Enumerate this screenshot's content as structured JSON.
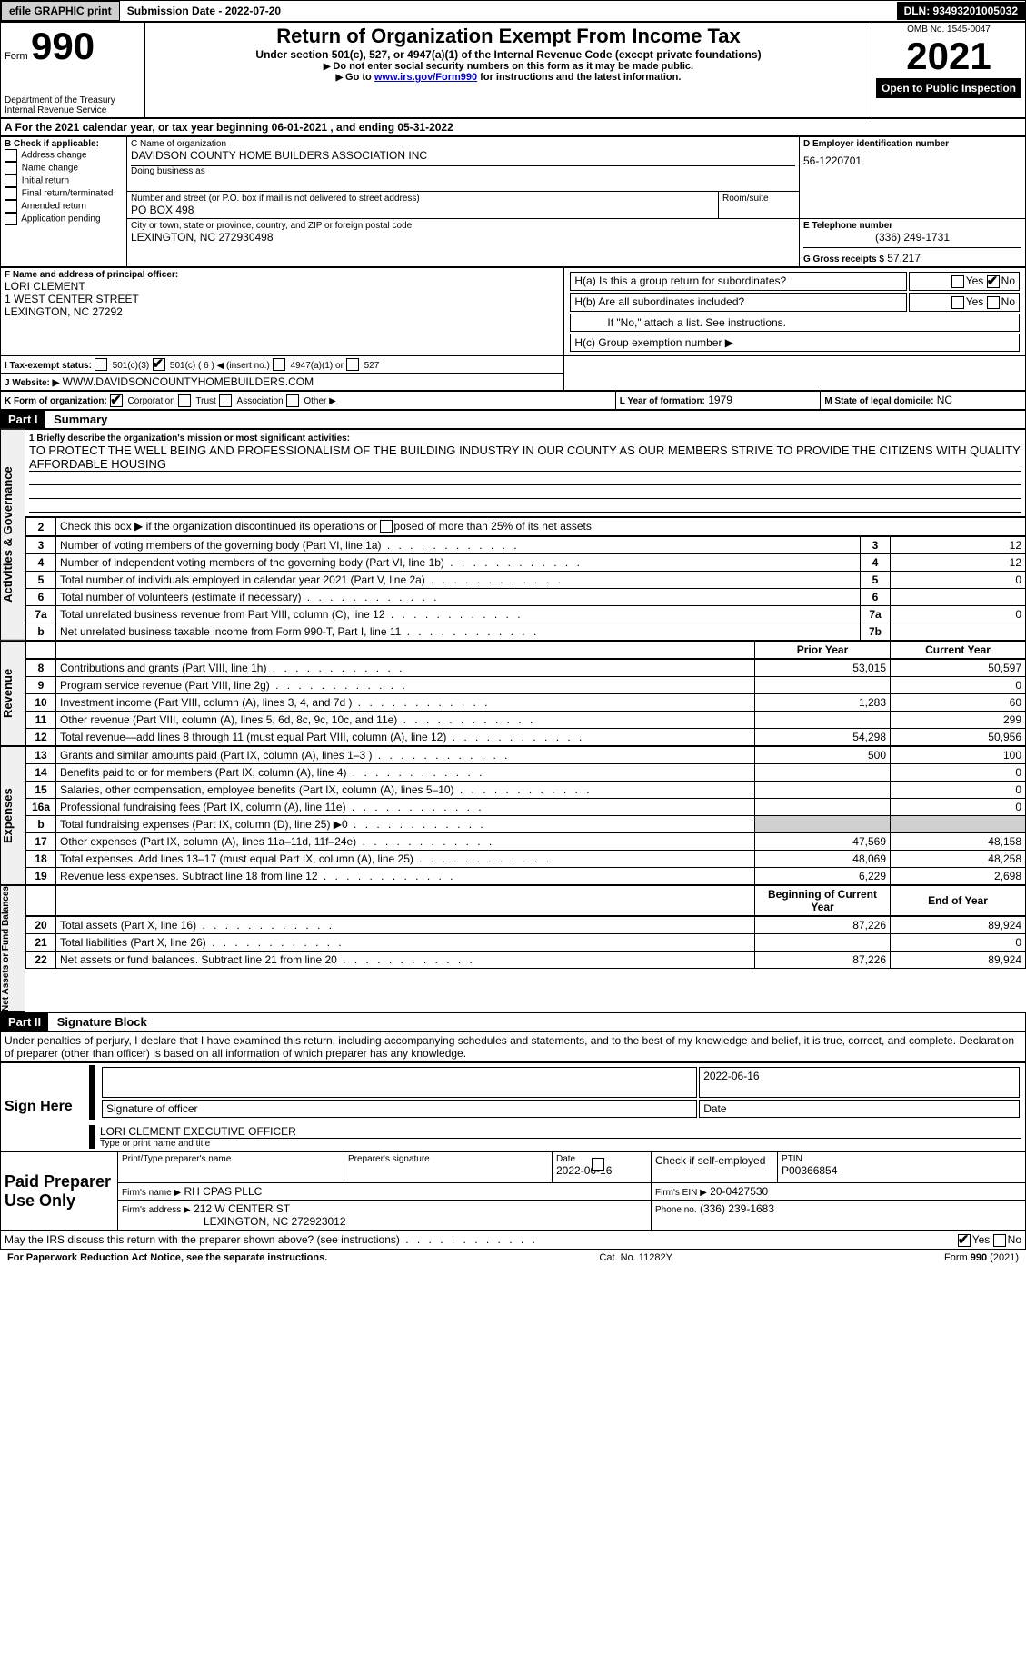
{
  "topbar": {
    "efile": "efile GRAPHIC print",
    "submission": "Submission Date - 2022-07-20",
    "dln": "DLN: 93493201005032"
  },
  "header": {
    "form_label": "Form",
    "form_no": "990",
    "dept": "Department of the Treasury",
    "irs": "Internal Revenue Service",
    "title": "Return of Organization Exempt From Income Tax",
    "subtitle": "Under section 501(c), 527, or 4947(a)(1) of the Internal Revenue Code (except private foundations)",
    "instr1": "Do not enter social security numbers on this form as it may be made public.",
    "instr2_pre": "Go to ",
    "instr2_link": "www.irs.gov/Form990",
    "instr2_post": " for instructions and the latest information.",
    "omb": "OMB No. 1545-0047",
    "year": "2021",
    "open": "Open to Public Inspection"
  },
  "sectionA": {
    "a": "A For the 2021 calendar year, or tax year beginning 06-01-2021   , and ending 05-31-2022",
    "b_label": "B Check if applicable:",
    "b_opts": [
      "Address change",
      "Name change",
      "Initial return",
      "Final return/terminated",
      "Amended return",
      "Application pending"
    ],
    "c_label": "C Name of organization",
    "c_name": "DAVIDSON COUNTY HOME BUILDERS ASSOCIATION INC",
    "dba": "Doing business as",
    "addr_label": "Number and street (or P.O. box if mail is not delivered to street address)",
    "addr": "PO BOX 498",
    "room": "Room/suite",
    "city_label": "City or town, state or province, country, and ZIP or foreign postal code",
    "city": "LEXINGTON, NC  272930498",
    "d_label": "D Employer identification number",
    "d_val": "56-1220701",
    "e_label": "E Telephone number",
    "e_val": "(336) 249-1731",
    "g_label": "G Gross receipts $",
    "g_val": "57,217",
    "f_label": "F  Name and address of principal officer:",
    "f_name": "LORI CLEMENT",
    "f_addr1": "1 WEST CENTER STREET",
    "f_addr2": "LEXINGTON, NC  27292",
    "ha": "H(a)  Is this a group return for subordinates?",
    "hb": "H(b)  Are all subordinates included?",
    "hb_note": "If \"No,\" attach a list. See instructions.",
    "hc": "H(c)  Group exemption number ▶",
    "yes": "Yes",
    "no": "No",
    "i_label": "I  Tax-exempt status:",
    "i_501c3": "501(c)(3)",
    "i_501c": "501(c) ( 6 ) ◀ (insert no.)",
    "i_4947": "4947(a)(1) or",
    "i_527": "527",
    "j_label": "J  Website: ▶",
    "j_val": "WWW.DAVIDSONCOUNTYHOMEBUILDERS.COM",
    "k_label": "K Form of organization:",
    "k_corp": "Corporation",
    "k_trust": "Trust",
    "k_assoc": "Association",
    "k_other": "Other ▶",
    "l_label": "L Year of formation:",
    "l_val": "1979",
    "m_label": "M State of legal domicile:",
    "m_val": "NC"
  },
  "part1": {
    "hdr": "Part I",
    "title": "Summary",
    "side_ag": "Activities & Governance",
    "side_rev": "Revenue",
    "side_exp": "Expenses",
    "side_na": "Net Assets or Fund Balances",
    "line1_label": "1  Briefly describe the organization's mission or most significant activities:",
    "line1_val": "TO PROTECT THE WELL BEING AND PROFESSIONALISM OF THE BUILDING INDUSTRY IN OUR COUNTY AS OUR MEMBERS STRIVE TO PROVIDE THE CITIZENS WITH QUALITY AFFORDABLE HOUSING",
    "line2": "Check this box ▶       if the organization discontinued its operations or disposed of more than 25% of its net assets.",
    "rows_ag": [
      {
        "n": "3",
        "d": "Number of voting members of the governing body (Part VI, line 1a)",
        "b": "3",
        "v": "12"
      },
      {
        "n": "4",
        "d": "Number of independent voting members of the governing body (Part VI, line 1b)",
        "b": "4",
        "v": "12"
      },
      {
        "n": "5",
        "d": "Total number of individuals employed in calendar year 2021 (Part V, line 2a)",
        "b": "5",
        "v": "0"
      },
      {
        "n": "6",
        "d": "Total number of volunteers (estimate if necessary)",
        "b": "6",
        "v": ""
      },
      {
        "n": "7a",
        "d": "Total unrelated business revenue from Part VIII, column (C), line 12",
        "b": "7a",
        "v": "0"
      },
      {
        "n": "b",
        "d": "Net unrelated business taxable income from Form 990-T, Part I, line 11",
        "b": "7b",
        "v": ""
      }
    ],
    "prior": "Prior Year",
    "current": "Current Year",
    "rows_rev": [
      {
        "n": "8",
        "d": "Contributions and grants (Part VIII, line 1h)",
        "p": "53,015",
        "c": "50,597"
      },
      {
        "n": "9",
        "d": "Program service revenue (Part VIII, line 2g)",
        "p": "",
        "c": "0"
      },
      {
        "n": "10",
        "d": "Investment income (Part VIII, column (A), lines 3, 4, and 7d )",
        "p": "1,283",
        "c": "60"
      },
      {
        "n": "11",
        "d": "Other revenue (Part VIII, column (A), lines 5, 6d, 8c, 9c, 10c, and 11e)",
        "p": "",
        "c": "299"
      },
      {
        "n": "12",
        "d": "Total revenue—add lines 8 through 11 (must equal Part VIII, column (A), line 12)",
        "p": "54,298",
        "c": "50,956"
      }
    ],
    "rows_exp": [
      {
        "n": "13",
        "d": "Grants and similar amounts paid (Part IX, column (A), lines 1–3 )",
        "p": "500",
        "c": "100"
      },
      {
        "n": "14",
        "d": "Benefits paid to or for members (Part IX, column (A), line 4)",
        "p": "",
        "c": "0"
      },
      {
        "n": "15",
        "d": "Salaries, other compensation, employee benefits (Part IX, column (A), lines 5–10)",
        "p": "",
        "c": "0"
      },
      {
        "n": "16a",
        "d": "Professional fundraising fees (Part IX, column (A), line 11e)",
        "p": "",
        "c": "0"
      },
      {
        "n": "b",
        "d": "Total fundraising expenses (Part IX, column (D), line 25) ▶0",
        "p": "shaded",
        "c": "shaded"
      },
      {
        "n": "17",
        "d": "Other expenses (Part IX, column (A), lines 11a–11d, 11f–24e)",
        "p": "47,569",
        "c": "48,158"
      },
      {
        "n": "18",
        "d": "Total expenses. Add lines 13–17 (must equal Part IX, column (A), line 25)",
        "p": "48,069",
        "c": "48,258"
      },
      {
        "n": "19",
        "d": "Revenue less expenses. Subtract line 18 from line 12",
        "p": "6,229",
        "c": "2,698"
      }
    ],
    "begin": "Beginning of Current Year",
    "end": "End of Year",
    "rows_na": [
      {
        "n": "20",
        "d": "Total assets (Part X, line 16)",
        "p": "87,226",
        "c": "89,924"
      },
      {
        "n": "21",
        "d": "Total liabilities (Part X, line 26)",
        "p": "",
        "c": "0"
      },
      {
        "n": "22",
        "d": "Net assets or fund balances. Subtract line 21 from line 20",
        "p": "87,226",
        "c": "89,924"
      }
    ]
  },
  "part2": {
    "hdr": "Part II",
    "title": "Signature Block",
    "decl": "Under penalties of perjury, I declare that I have examined this return, including accompanying schedules and statements, and to the best of my knowledge and belief, it is true, correct, and complete. Declaration of preparer (other than officer) is based on all information of which preparer has any knowledge.",
    "sign_here": "Sign Here",
    "sig_officer": "Signature of officer",
    "date": "Date",
    "date_val": "2022-06-16",
    "type_name": "Type or print name and title",
    "name_val": "LORI CLEMENT  EXECUTIVE OFFICER",
    "paid": "Paid Preparer Use Only",
    "print_name": "Print/Type preparer's name",
    "prep_sig": "Preparer's signature",
    "prep_date": "Date",
    "prep_date_val": "2022-06-16",
    "check_self": "Check         if self-employed",
    "ptin": "PTIN",
    "ptin_val": "P00366854",
    "firm_name": "Firm's name    ▶",
    "firm_name_val": "RH CPAS PLLC",
    "firm_ein": "Firm's EIN ▶",
    "firm_ein_val": "20-0427530",
    "firm_addr": "Firm's address ▶",
    "firm_addr_val": "212 W CENTER ST",
    "firm_city": "LEXINGTON, NC  272923012",
    "phone": "Phone no.",
    "phone_val": "(336) 239-1683",
    "may": "May the IRS discuss this return with the preparer shown above? (see instructions)"
  },
  "footer": {
    "pra": "For Paperwork Reduction Act Notice, see the separate instructions.",
    "cat": "Cat. No. 11282Y",
    "form": "Form 990 (2021)"
  }
}
